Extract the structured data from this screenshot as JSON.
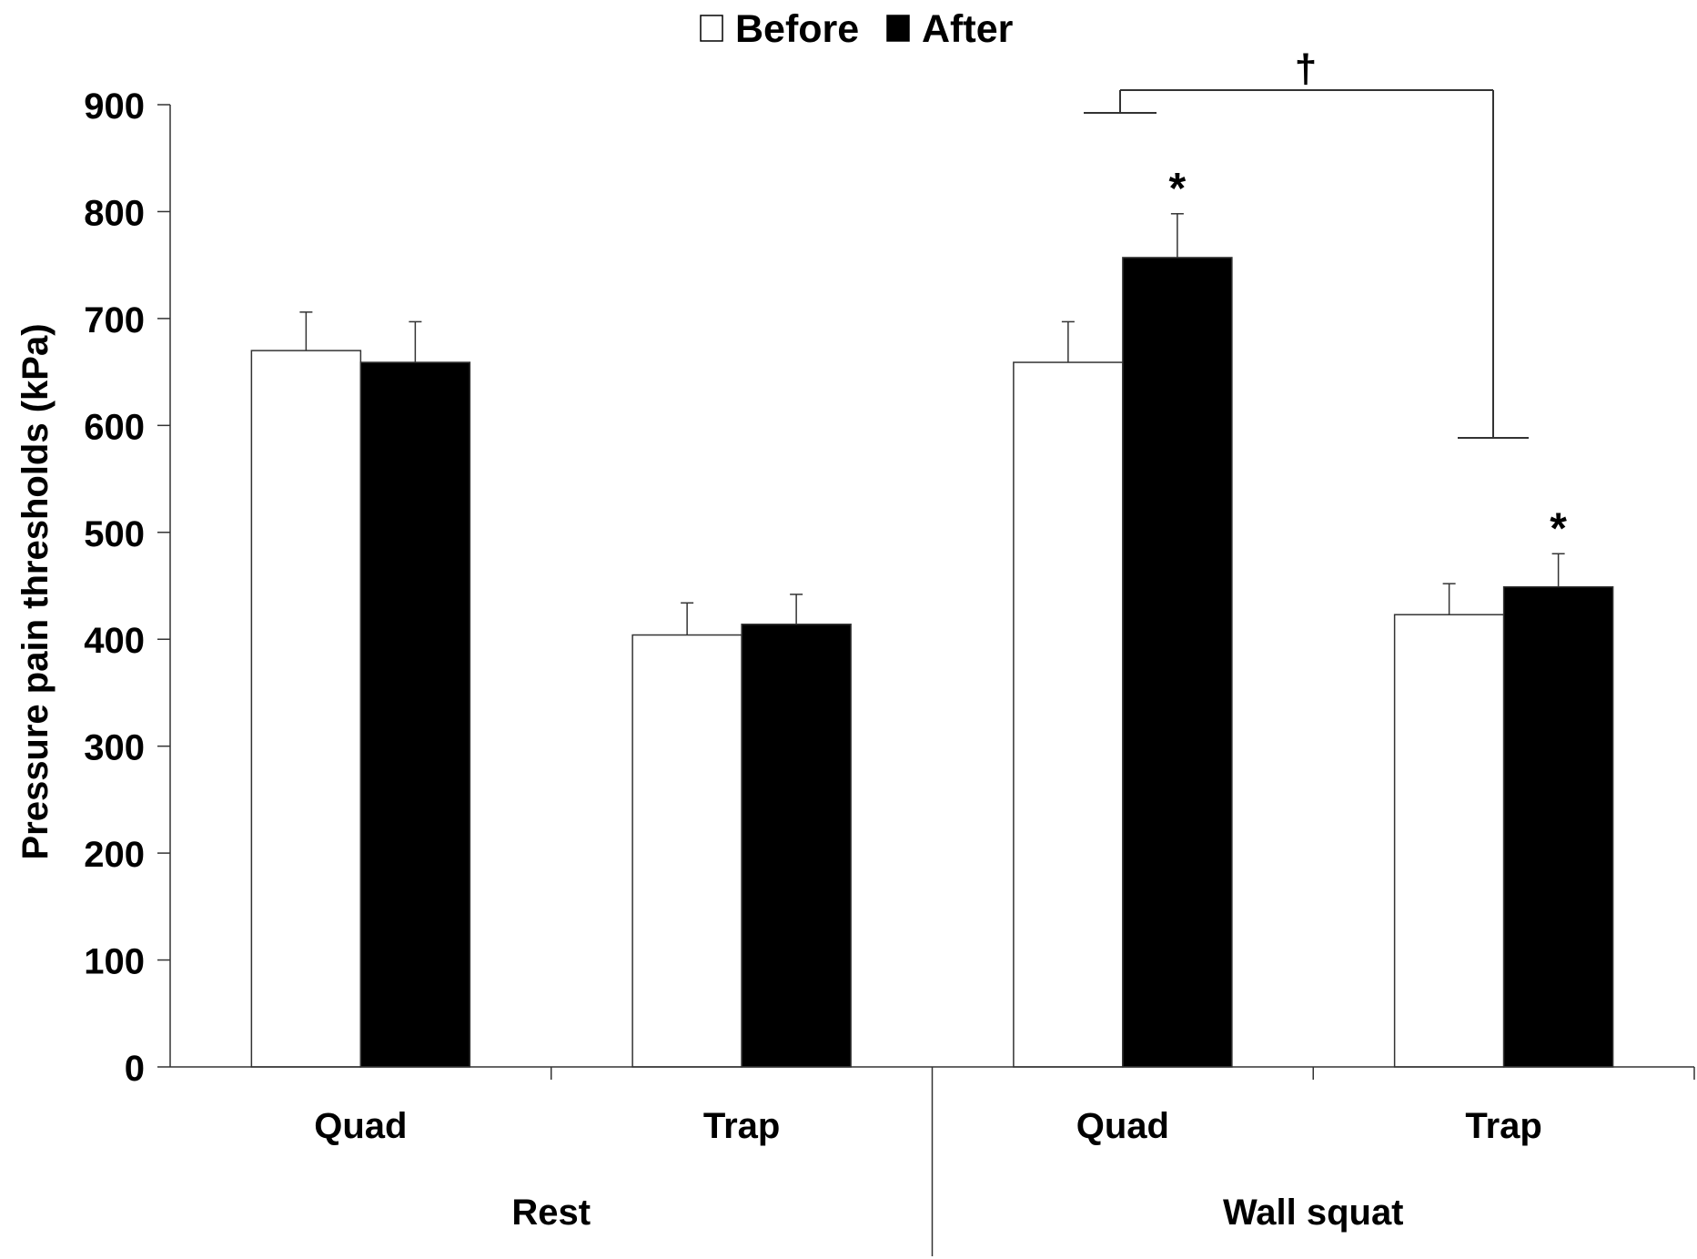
{
  "chart_data": {
    "type": "bar",
    "ylabel": "Pressure pain thresholds (kPa)",
    "xlabel": "",
    "ylim": [
      0,
      900
    ],
    "yticks": [
      0,
      100,
      200,
      300,
      400,
      500,
      600,
      700,
      800,
      900
    ],
    "grid": false,
    "legend_position": "top-center",
    "categories": [
      "Quad",
      "Trap",
      "Quad",
      "Trap"
    ],
    "groups": [
      {
        "label": "Rest",
        "categories": [
          0,
          1
        ]
      },
      {
        "label": "Wall squat",
        "categories": [
          2,
          3
        ]
      }
    ],
    "series": [
      {
        "name": "Before",
        "color": "#ffffff",
        "values": [
          670,
          404,
          659,
          423
        ],
        "errors": [
          36,
          30,
          38,
          29
        ]
      },
      {
        "name": "After",
        "color": "#000000",
        "values": [
          659,
          414,
          757,
          449
        ],
        "errors": [
          38,
          28,
          41,
          31
        ]
      }
    ],
    "annotations": [
      {
        "text": "*",
        "category": 2,
        "series": "After"
      },
      {
        "text": "*",
        "category": 3,
        "series": "After"
      },
      {
        "text": "†",
        "bracket_from_category": 2,
        "bracket_to_category": 3
      }
    ]
  }
}
